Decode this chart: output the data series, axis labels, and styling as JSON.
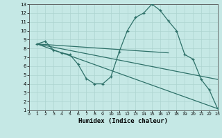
{
  "xlabel": "Humidex (Indice chaleur)",
  "xlim": [
    0,
    23
  ],
  "ylim": [
    1,
    13
  ],
  "xticks": [
    0,
    1,
    2,
    3,
    4,
    5,
    6,
    7,
    8,
    9,
    10,
    11,
    12,
    13,
    14,
    15,
    16,
    17,
    18,
    19,
    20,
    21,
    22,
    23
  ],
  "yticks": [
    1,
    2,
    3,
    4,
    5,
    6,
    7,
    8,
    9,
    10,
    11,
    12,
    13
  ],
  "bg_color": "#c5e8e5",
  "line_color": "#2d7068",
  "grid_color": "#aed4d0",
  "main_line": {
    "x": [
      1,
      2,
      3,
      4,
      5,
      6,
      7,
      8,
      9,
      10,
      11,
      12,
      13,
      14,
      15,
      16,
      17,
      18,
      19,
      20,
      21,
      22,
      23
    ],
    "y": [
      8.5,
      8.8,
      7.8,
      7.5,
      7.3,
      6.2,
      4.6,
      4.0,
      4.0,
      4.8,
      7.6,
      10.0,
      11.5,
      12.0,
      13.0,
      12.3,
      11.1,
      10.0,
      7.3,
      6.8,
      4.5,
      3.3,
      1.2
    ]
  },
  "straight_lines": [
    {
      "x": [
        1,
        17
      ],
      "y": [
        8.5,
        7.5
      ]
    },
    {
      "x": [
        1,
        23
      ],
      "y": [
        8.5,
        4.5
      ]
    },
    {
      "x": [
        1,
        23
      ],
      "y": [
        8.5,
        1.2
      ]
    }
  ]
}
